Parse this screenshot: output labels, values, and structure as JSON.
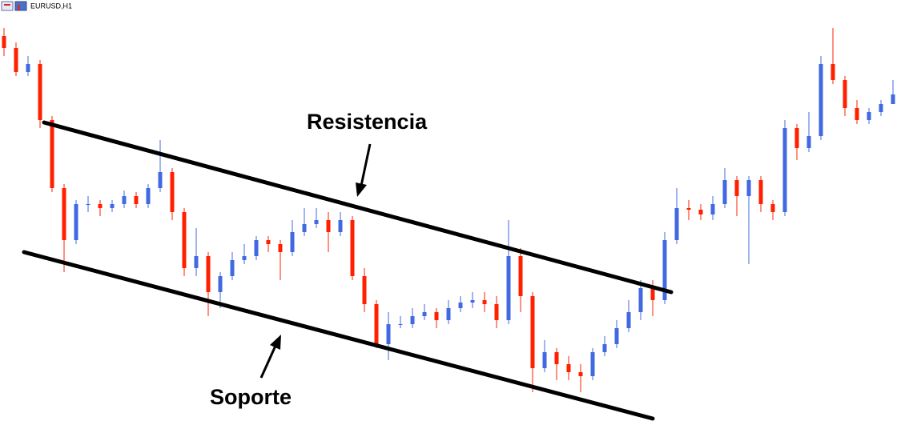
{
  "chart_data": {
    "type": "candlestick",
    "title": "EURUSD,H1",
    "annotations": [
      "Resistencia",
      "Soporte"
    ],
    "up_color": "#4169e1",
    "down_color": "#ff2000",
    "ylim": [
      0,
      531
    ],
    "open": [
      486,
      471,
      441,
      451,
      381,
      296,
      231,
      276,
      276,
      271,
      276,
      286,
      276,
      296,
      316,
      266,
      196,
      211,
      166,
      186,
      206,
      211,
      231,
      226,
      216,
      241,
      251,
      256,
      241,
      256,
      186,
      151,
      101,
      126,
      126,
      136,
      141,
      131,
      146,
      153,
      156,
      151,
      131,
      211,
      161,
      71,
      91,
      76,
      66,
      61,
      91,
      101,
      121,
      141,
      171,
      156,
      231,
      271,
      269,
      263,
      276,
      306,
      286,
      306,
      276,
      266,
      371,
      346,
      361,
      451,
      431,
      396,
      381,
      391,
      401
    ],
    "high": [
      496,
      478,
      461,
      456,
      386,
      301,
      281,
      286,
      281,
      281,
      293,
      291,
      301,
      356,
      321,
      271,
      246,
      216,
      191,
      216,
      226,
      236,
      236,
      231,
      256,
      271,
      271,
      266,
      266,
      261,
      196,
      156,
      141,
      136,
      146,
      151,
      146,
      156,
      161,
      166,
      166,
      161,
      256,
      221,
      166,
      106,
      96,
      86,
      76,
      96,
      111,
      131,
      156,
      181,
      181,
      241,
      296,
      281,
      276,
      286,
      321,
      311,
      311,
      311,
      281,
      381,
      376,
      391,
      461,
      496,
      436,
      406,
      396,
      406,
      431
    ],
    "low": [
      461,
      436,
      436,
      371,
      291,
      191,
      226,
      266,
      261,
      266,
      271,
      271,
      271,
      291,
      256,
      186,
      186,
      136,
      146,
      181,
      201,
      206,
      216,
      181,
      211,
      236,
      246,
      216,
      236,
      181,
      141,
      96,
      81,
      121,
      121,
      131,
      121,
      126,
      141,
      146,
      141,
      121,
      126,
      141,
      41,
      66,
      56,
      56,
      41,
      56,
      86,
      96,
      116,
      131,
      136,
      151,
      226,
      256,
      256,
      256,
      271,
      261,
      201,
      266,
      256,
      261,
      331,
      341,
      356,
      426,
      386,
      376,
      376,
      386,
      406
    ],
    "close": [
      471,
      441,
      451,
      381,
      296,
      231,
      276,
      276,
      271,
      276,
      286,
      276,
      296,
      316,
      266,
      196,
      211,
      166,
      186,
      206,
      211,
      231,
      226,
      216,
      241,
      251,
      256,
      241,
      256,
      186,
      151,
      101,
      126,
      126,
      136,
      141,
      131,
      146,
      153,
      156,
      151,
      131,
      211,
      161,
      71,
      91,
      76,
      66,
      61,
      91,
      101,
      121,
      141,
      171,
      156,
      231,
      271,
      269,
      263,
      276,
      306,
      286,
      306,
      276,
      266,
      371,
      346,
      361,
      451,
      431,
      396,
      381,
      391,
      401,
      413
    ]
  }
}
